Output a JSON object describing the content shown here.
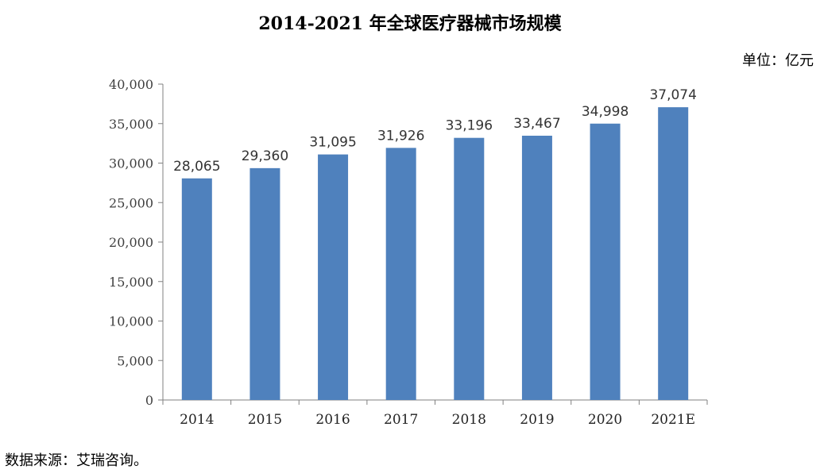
{
  "title": "2014-2021 年全球医疗器械市场规模",
  "unit": "单位：亿元",
  "source": "数据来源：艾瑞咨询。",
  "colors": {
    "bar": "#4F81BD",
    "axis": "#808080"
  },
  "chart_data": {
    "type": "bar",
    "title": "2014-2021 年全球医疗器械市场规模",
    "categories": [
      "2014",
      "2015",
      "2016",
      "2017",
      "2018",
      "2019",
      "2020",
      "2021E"
    ],
    "values": [
      28065,
      29360,
      31095,
      31926,
      33196,
      33467,
      34998,
      37074
    ],
    "value_labels": [
      "28,065",
      "29,360",
      "31,095",
      "31,926",
      "33,196",
      "33,467",
      "34,998",
      "37,074"
    ],
    "ylim": [
      0,
      40000
    ],
    "yticks": [
      0,
      5000,
      10000,
      15000,
      20000,
      25000,
      30000,
      35000,
      40000
    ],
    "ytick_labels": [
      "0",
      "5,000",
      "10,000",
      "15,000",
      "20,000",
      "25,000",
      "30,000",
      "35,000",
      "40,000"
    ],
    "grid": false,
    "legend": "none"
  }
}
